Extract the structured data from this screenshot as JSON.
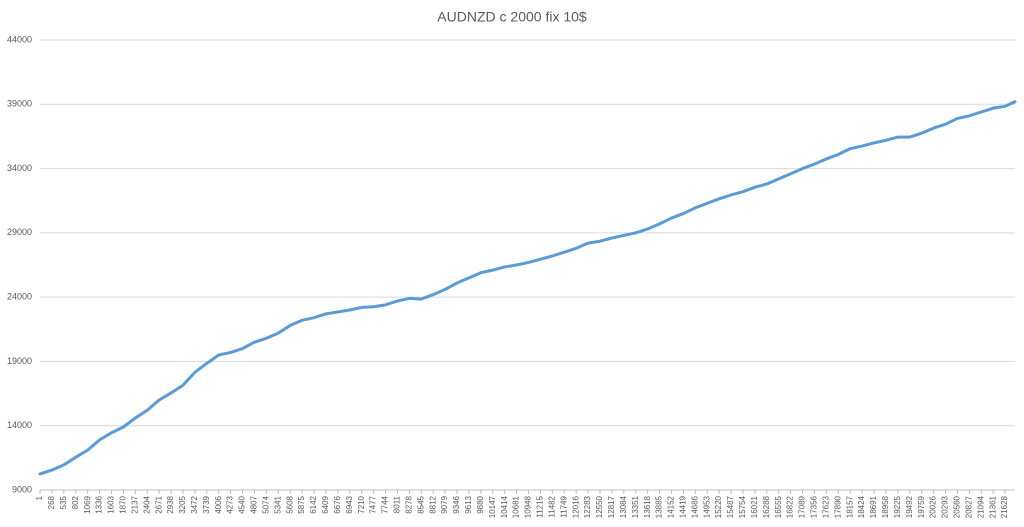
{
  "chart_data": {
    "type": "line",
    "title": "AUDNZD c 2000 fix 10$",
    "x": [
      1,
      268,
      535,
      802,
      1069,
      1336,
      1603,
      1870,
      2137,
      2404,
      2671,
      2938,
      3205,
      3472,
      3739,
      4006,
      4273,
      4540,
      4807,
      5074,
      5341,
      5608,
      5875,
      6142,
      6409,
      6676,
      6943,
      7210,
      7477,
      7744,
      8011,
      8278,
      8545,
      8812,
      9079,
      9346,
      9613,
      9880,
      10147,
      10414,
      10681,
      10948,
      11215,
      11482,
      11749,
      12016,
      12283,
      12550,
      12817,
      13084,
      13351,
      13618,
      13885,
      14152,
      14419,
      14686,
      14953,
      15220,
      15487,
      15754,
      16021,
      16288,
      16555,
      16822,
      17089,
      17356,
      17623,
      17890,
      18157,
      18424,
      18691,
      18958,
      19225,
      19492,
      19759,
      20026,
      20293,
      20560,
      20827,
      21094,
      21361,
      21628,
      21850
    ],
    "values": [
      10250,
      10550,
      10950,
      11550,
      12100,
      12900,
      13450,
      13900,
      14600,
      15200,
      16000,
      16550,
      17150,
      18150,
      18850,
      19500,
      19700,
      20000,
      20500,
      20800,
      21200,
      21800,
      22200,
      22400,
      22700,
      22850,
      23000,
      23200,
      23250,
      23400,
      23700,
      23900,
      23850,
      24200,
      24600,
      25100,
      25500,
      25900,
      26100,
      26350,
      26500,
      26700,
      26950,
      27200,
      27500,
      27800,
      28200,
      28350,
      28600,
      28800,
      29000,
      29300,
      29700,
      30150,
      30500,
      30950,
      31300,
      31650,
      31950,
      32200,
      32550,
      32800,
      33200,
      33600,
      34000,
      34350,
      34750,
      35100,
      35550,
      35750,
      36000,
      36200,
      36450,
      36450,
      36750,
      37150,
      37450,
      37900,
      38100,
      38400,
      38700,
      38850,
      39200
    ],
    "color": "#5b9bd5",
    "xlim": [
      1,
      21850
    ],
    "xticks": [
      1,
      268,
      535,
      802,
      1069,
      1336,
      1603,
      1870,
      2137,
      2404,
      2671,
      2938,
      3205,
      3472,
      3739,
      4006,
      4273,
      4540,
      4807,
      5074,
      5341,
      5608,
      5875,
      6142,
      6409,
      6676,
      6943,
      7210,
      7477,
      7744,
      8011,
      8278,
      8545,
      8812,
      9079,
      9346,
      9613,
      9880,
      10147,
      10414,
      10681,
      10948,
      11215,
      11482,
      11749,
      12016,
      12283,
      12550,
      12817,
      13084,
      13351,
      13618,
      13885,
      14152,
      14419,
      14686,
      14953,
      15220,
      15487,
      15754,
      16021,
      16288,
      16555,
      16822,
      17089,
      17356,
      17623,
      17890,
      18157,
      18424,
      18691,
      18958,
      19225,
      19492,
      19759,
      20026,
      20293,
      20560,
      20827,
      21094,
      21361,
      21628
    ],
    "ylim": [
      9000,
      44000
    ],
    "yticks": [
      9000,
      14000,
      19000,
      24000,
      29000,
      34000,
      39000,
      44000
    ],
    "grid": true
  }
}
